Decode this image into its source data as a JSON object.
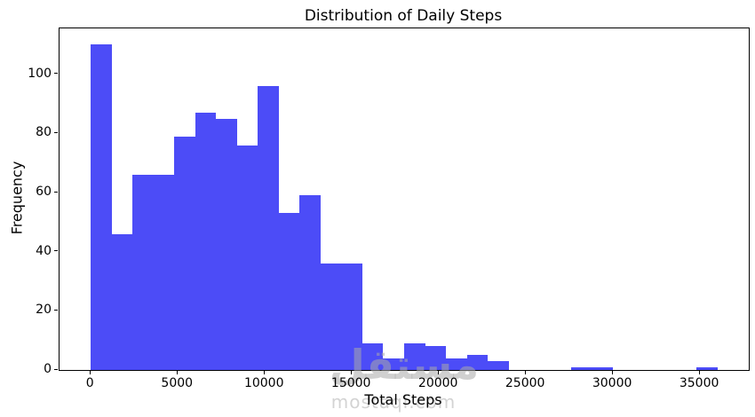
{
  "figure": {
    "title": "Distribution of Daily Steps",
    "xlabel": "Total Steps",
    "ylabel": "Frequency"
  },
  "watermark": {
    "arabic": "مستقل",
    "latin": "mostaql.com"
  },
  "chart_data": {
    "type": "bar",
    "subtype": "histogram",
    "title": "Distribution of Daily Steps",
    "xlabel": "Total Steps",
    "ylabel": "Frequency",
    "bar_color": "#4c4cf7",
    "background_color": "#ffffff",
    "grid": false,
    "legend_position": "none",
    "bin_start": 0,
    "bin_width": 1200,
    "values": [
      110,
      46,
      66,
      66,
      79,
      87,
      85,
      76,
      96,
      53,
      59,
      36,
      36,
      9,
      4,
      9,
      8,
      4,
      5,
      3,
      0,
      0,
      0,
      1,
      1,
      0,
      0,
      0,
      0,
      1
    ],
    "x_ticks": [
      0,
      5000,
      10000,
      15000,
      20000,
      25000,
      30000,
      35000
    ],
    "y_ticks": [
      0,
      20,
      40,
      60,
      80,
      100
    ],
    "xlim": [
      -1800,
      37800
    ],
    "ylim": [
      0,
      115.5
    ]
  }
}
